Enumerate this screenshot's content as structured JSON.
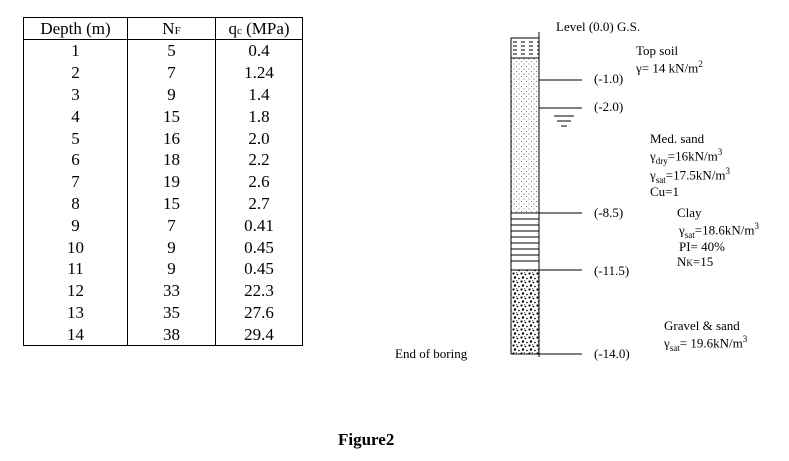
{
  "table": {
    "headers": {
      "depth": "Depth (m)",
      "nf_main": "N",
      "nf_sub": "F",
      "qc_main": "q",
      "qc_sub": "c",
      "qc_unit": " (MPa)"
    },
    "rows": [
      {
        "depth": "1",
        "nf": "5",
        "qc": "0.4"
      },
      {
        "depth": "2",
        "nf": "7",
        "qc": "1.24"
      },
      {
        "depth": "3",
        "nf": "9",
        "qc": "1.4"
      },
      {
        "depth": "4",
        "nf": "15",
        "qc": "1.8"
      },
      {
        "depth": "5",
        "nf": "16",
        "qc": "2.0"
      },
      {
        "depth": "6",
        "nf": "18",
        "qc": "2.2"
      },
      {
        "depth": "7",
        "nf": "19",
        "qc": "2.6"
      },
      {
        "depth": "8",
        "nf": "15",
        "qc": "2.7"
      },
      {
        "depth": "9",
        "nf": "7",
        "qc": "0.41"
      },
      {
        "depth": "10",
        "nf": "9",
        "qc": "0.45"
      },
      {
        "depth": "11",
        "nf": "9",
        "qc": "0.45"
      },
      {
        "depth": "12",
        "nf": "33",
        "qc": "22.3"
      },
      {
        "depth": "13",
        "nf": "35",
        "qc": "27.6"
      },
      {
        "depth": "14",
        "nf": "38",
        "qc": "29.4"
      }
    ]
  },
  "profile": {
    "level_label": "Level (0.0) G.S.",
    "depth_marks": [
      "(-1.0)",
      "(-2.0)",
      "(-8.5)",
      "(-11.5)",
      "(-14.0)"
    ],
    "end_label": "End of boring",
    "layers": {
      "top_soil": {
        "name": "Top soil",
        "gamma": "γ= 14 kN/m",
        "gamma_sup": "2"
      },
      "med_sand": {
        "name": "Med. sand",
        "gdry": "γ",
        "gdry_sub": "dry",
        "gdry_val": "=16kN/m",
        "gdry_sup": "3",
        "gsat": "γ",
        "gsat_sub": "sat",
        "gsat_val": "=17.5kN/m",
        "gsat_sup": "3",
        "cu": "Cu=1"
      },
      "clay": {
        "name": "Clay",
        "gsat": "γ",
        "gsat_sub": "sat",
        "gsat_val": "=18.6kN/m",
        "gsat_sup": "3",
        "pi": "PI= 40%",
        "nk_main": "N",
        "nk_sub": "K",
        "nk_val": "=15"
      },
      "gravel": {
        "name": "Gravel & sand",
        "gsat": "γ",
        "gsat_sub": "sat",
        "gsat_val": "= 19.6kN/m",
        "gsat_sup": "3"
      }
    },
    "caption": "Figure2"
  }
}
